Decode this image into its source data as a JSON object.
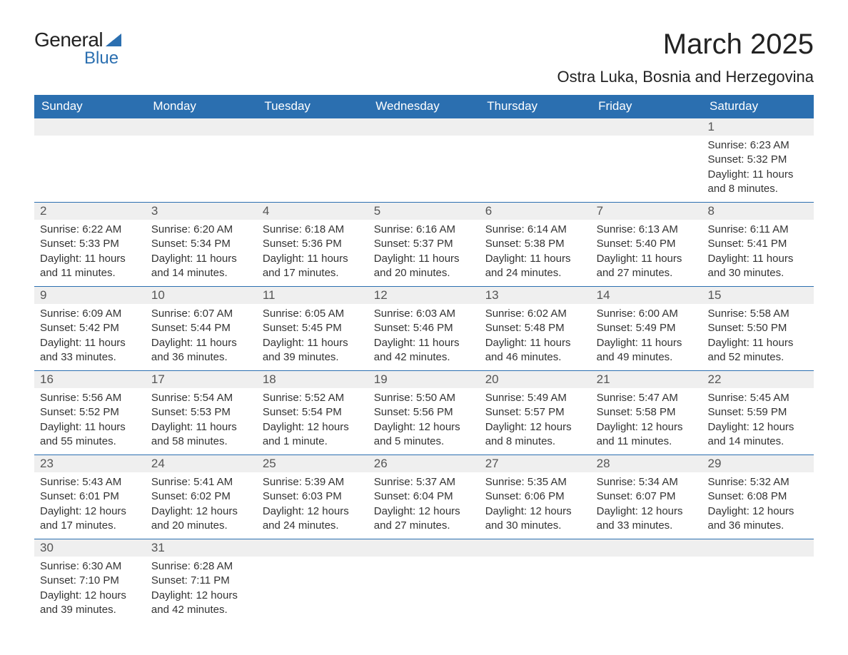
{
  "logo": {
    "text1": "General",
    "text2": "Blue",
    "accent_color": "#2b6fb0"
  },
  "title": {
    "month": "March 2025",
    "location": "Ostra Luka, Bosnia and Herzegovina"
  },
  "colors": {
    "header_bg": "#2b6fb0",
    "header_text": "#ffffff",
    "dayrow_bg": "#efefef",
    "dayrow_text": "#555555",
    "body_text": "#333333",
    "border": "#2b6fb0",
    "page_bg": "#ffffff"
  },
  "typography": {
    "month_title_fontsize": 40,
    "location_fontsize": 22,
    "header_fontsize": 17,
    "daynum_fontsize": 17,
    "body_fontsize": 15
  },
  "day_headers": [
    "Sunday",
    "Monday",
    "Tuesday",
    "Wednesday",
    "Thursday",
    "Friday",
    "Saturday"
  ],
  "weeks": [
    [
      null,
      null,
      null,
      null,
      null,
      null,
      {
        "n": "1",
        "sunrise": "Sunrise: 6:23 AM",
        "sunset": "Sunset: 5:32 PM",
        "day1": "Daylight: 11 hours",
        "day2": "and 8 minutes."
      }
    ],
    [
      {
        "n": "2",
        "sunrise": "Sunrise: 6:22 AM",
        "sunset": "Sunset: 5:33 PM",
        "day1": "Daylight: 11 hours",
        "day2": "and 11 minutes."
      },
      {
        "n": "3",
        "sunrise": "Sunrise: 6:20 AM",
        "sunset": "Sunset: 5:34 PM",
        "day1": "Daylight: 11 hours",
        "day2": "and 14 minutes."
      },
      {
        "n": "4",
        "sunrise": "Sunrise: 6:18 AM",
        "sunset": "Sunset: 5:36 PM",
        "day1": "Daylight: 11 hours",
        "day2": "and 17 minutes."
      },
      {
        "n": "5",
        "sunrise": "Sunrise: 6:16 AM",
        "sunset": "Sunset: 5:37 PM",
        "day1": "Daylight: 11 hours",
        "day2": "and 20 minutes."
      },
      {
        "n": "6",
        "sunrise": "Sunrise: 6:14 AM",
        "sunset": "Sunset: 5:38 PM",
        "day1": "Daylight: 11 hours",
        "day2": "and 24 minutes."
      },
      {
        "n": "7",
        "sunrise": "Sunrise: 6:13 AM",
        "sunset": "Sunset: 5:40 PM",
        "day1": "Daylight: 11 hours",
        "day2": "and 27 minutes."
      },
      {
        "n": "8",
        "sunrise": "Sunrise: 6:11 AM",
        "sunset": "Sunset: 5:41 PM",
        "day1": "Daylight: 11 hours",
        "day2": "and 30 minutes."
      }
    ],
    [
      {
        "n": "9",
        "sunrise": "Sunrise: 6:09 AM",
        "sunset": "Sunset: 5:42 PM",
        "day1": "Daylight: 11 hours",
        "day2": "and 33 minutes."
      },
      {
        "n": "10",
        "sunrise": "Sunrise: 6:07 AM",
        "sunset": "Sunset: 5:44 PM",
        "day1": "Daylight: 11 hours",
        "day2": "and 36 minutes."
      },
      {
        "n": "11",
        "sunrise": "Sunrise: 6:05 AM",
        "sunset": "Sunset: 5:45 PM",
        "day1": "Daylight: 11 hours",
        "day2": "and 39 minutes."
      },
      {
        "n": "12",
        "sunrise": "Sunrise: 6:03 AM",
        "sunset": "Sunset: 5:46 PM",
        "day1": "Daylight: 11 hours",
        "day2": "and 42 minutes."
      },
      {
        "n": "13",
        "sunrise": "Sunrise: 6:02 AM",
        "sunset": "Sunset: 5:48 PM",
        "day1": "Daylight: 11 hours",
        "day2": "and 46 minutes."
      },
      {
        "n": "14",
        "sunrise": "Sunrise: 6:00 AM",
        "sunset": "Sunset: 5:49 PM",
        "day1": "Daylight: 11 hours",
        "day2": "and 49 minutes."
      },
      {
        "n": "15",
        "sunrise": "Sunrise: 5:58 AM",
        "sunset": "Sunset: 5:50 PM",
        "day1": "Daylight: 11 hours",
        "day2": "and 52 minutes."
      }
    ],
    [
      {
        "n": "16",
        "sunrise": "Sunrise: 5:56 AM",
        "sunset": "Sunset: 5:52 PM",
        "day1": "Daylight: 11 hours",
        "day2": "and 55 minutes."
      },
      {
        "n": "17",
        "sunrise": "Sunrise: 5:54 AM",
        "sunset": "Sunset: 5:53 PM",
        "day1": "Daylight: 11 hours",
        "day2": "and 58 minutes."
      },
      {
        "n": "18",
        "sunrise": "Sunrise: 5:52 AM",
        "sunset": "Sunset: 5:54 PM",
        "day1": "Daylight: 12 hours",
        "day2": "and 1 minute."
      },
      {
        "n": "19",
        "sunrise": "Sunrise: 5:50 AM",
        "sunset": "Sunset: 5:56 PM",
        "day1": "Daylight: 12 hours",
        "day2": "and 5 minutes."
      },
      {
        "n": "20",
        "sunrise": "Sunrise: 5:49 AM",
        "sunset": "Sunset: 5:57 PM",
        "day1": "Daylight: 12 hours",
        "day2": "and 8 minutes."
      },
      {
        "n": "21",
        "sunrise": "Sunrise: 5:47 AM",
        "sunset": "Sunset: 5:58 PM",
        "day1": "Daylight: 12 hours",
        "day2": "and 11 minutes."
      },
      {
        "n": "22",
        "sunrise": "Sunrise: 5:45 AM",
        "sunset": "Sunset: 5:59 PM",
        "day1": "Daylight: 12 hours",
        "day2": "and 14 minutes."
      }
    ],
    [
      {
        "n": "23",
        "sunrise": "Sunrise: 5:43 AM",
        "sunset": "Sunset: 6:01 PM",
        "day1": "Daylight: 12 hours",
        "day2": "and 17 minutes."
      },
      {
        "n": "24",
        "sunrise": "Sunrise: 5:41 AM",
        "sunset": "Sunset: 6:02 PM",
        "day1": "Daylight: 12 hours",
        "day2": "and 20 minutes."
      },
      {
        "n": "25",
        "sunrise": "Sunrise: 5:39 AM",
        "sunset": "Sunset: 6:03 PM",
        "day1": "Daylight: 12 hours",
        "day2": "and 24 minutes."
      },
      {
        "n": "26",
        "sunrise": "Sunrise: 5:37 AM",
        "sunset": "Sunset: 6:04 PM",
        "day1": "Daylight: 12 hours",
        "day2": "and 27 minutes."
      },
      {
        "n": "27",
        "sunrise": "Sunrise: 5:35 AM",
        "sunset": "Sunset: 6:06 PM",
        "day1": "Daylight: 12 hours",
        "day2": "and 30 minutes."
      },
      {
        "n": "28",
        "sunrise": "Sunrise: 5:34 AM",
        "sunset": "Sunset: 6:07 PM",
        "day1": "Daylight: 12 hours",
        "day2": "and 33 minutes."
      },
      {
        "n": "29",
        "sunrise": "Sunrise: 5:32 AM",
        "sunset": "Sunset: 6:08 PM",
        "day1": "Daylight: 12 hours",
        "day2": "and 36 minutes."
      }
    ],
    [
      {
        "n": "30",
        "sunrise": "Sunrise: 6:30 AM",
        "sunset": "Sunset: 7:10 PM",
        "day1": "Daylight: 12 hours",
        "day2": "and 39 minutes."
      },
      {
        "n": "31",
        "sunrise": "Sunrise: 6:28 AM",
        "sunset": "Sunset: 7:11 PM",
        "day1": "Daylight: 12 hours",
        "day2": "and 42 minutes."
      },
      null,
      null,
      null,
      null,
      null
    ]
  ]
}
